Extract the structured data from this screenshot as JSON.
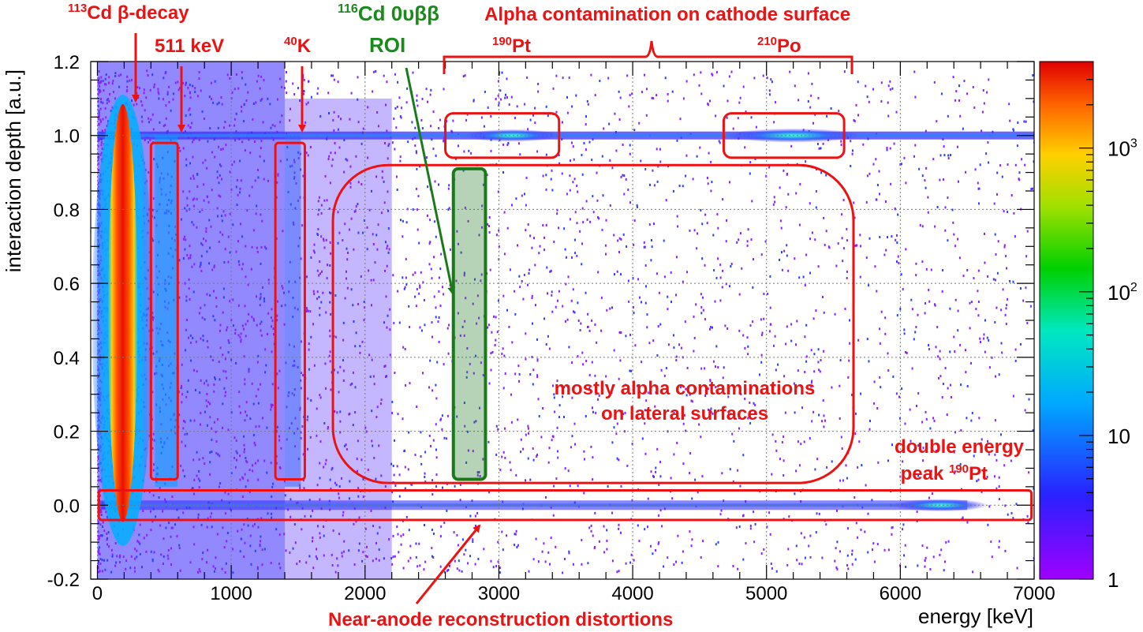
{
  "chart_data": {
    "type": "heatmap",
    "xlabel": "energy [keV]",
    "ylabel": "interaction depth [a.u.]",
    "xlim": [
      -50,
      7000
    ],
    "ylim": [
      -0.2,
      1.2
    ],
    "x_ticks": [
      0,
      1000,
      2000,
      3000,
      4000,
      5000,
      6000,
      7000
    ],
    "y_ticks": [
      -0.2,
      0.0,
      0.2,
      0.4,
      0.6,
      0.8,
      1.0,
      1.2
    ],
    "y_tick_labels": [
      "-0.2",
      "0.0",
      "0.2",
      "0.4",
      "0.6",
      "0.8",
      "1.0",
      "1.2"
    ],
    "grid": true,
    "colorbar": {
      "scale": "log",
      "range": [
        1,
        4000
      ],
      "ticks": [
        {
          "value": 1,
          "base": "1",
          "exp": ""
        },
        {
          "value": 10,
          "base": "10",
          "exp": ""
        },
        {
          "value": 100,
          "base": "10",
          "exp": "2"
        },
        {
          "value": 1000,
          "base": "10",
          "exp": "3"
        }
      ]
    },
    "features": [
      {
        "name": "113Cd beta-decay band",
        "x_range": [
          100,
          300
        ],
        "y_range": [
          -0.05,
          1.08
        ]
      },
      {
        "name": "511 keV line",
        "x": 511
      },
      {
        "name": "40K line",
        "x": 1461
      },
      {
        "name": "cathode surface line",
        "y": 1.0,
        "x_range": [
          0,
          7000
        ]
      },
      {
        "name": "near-anode line",
        "y": 0.0,
        "x_range": [
          0,
          6500
        ]
      },
      {
        "name": "190Pt peak",
        "x": 3150,
        "y": 1.0
      },
      {
        "name": "210Po peak",
        "x": 5300,
        "y": 1.0
      },
      {
        "name": "double energy peak 190Pt",
        "x": 6300,
        "y": 0.0
      }
    ],
    "regions": [
      {
        "id": "box-511",
        "x_range": [
          400,
          600
        ],
        "y_range": [
          0.07,
          0.98
        ]
      },
      {
        "id": "box-40k",
        "x_range": [
          1330,
          1550
        ],
        "y_range": [
          0.07,
          0.98
        ]
      },
      {
        "id": "box-pt",
        "x_range": [
          2600,
          3450
        ],
        "y_range": [
          0.94,
          1.06
        ]
      },
      {
        "id": "box-po",
        "x_range": [
          4680,
          5580
        ],
        "y_range": [
          0.94,
          1.06
        ]
      },
      {
        "id": "box-lateral",
        "x_range": [
          1760,
          5650
        ],
        "y_range": [
          0.06,
          0.92
        ]
      },
      {
        "id": "box-roi",
        "x_range": [
          2660,
          2900
        ],
        "y_range": [
          0.07,
          0.91
        ]
      },
      {
        "id": "box-anode",
        "x_range": [
          10,
          6980
        ],
        "y_range": [
          -0.04,
          0.04
        ]
      }
    ],
    "annotations": {
      "cd113": {
        "sup": "113",
        "text": "Cd β-decay"
      },
      "kev511": {
        "text": "511 keV"
      },
      "k40": {
        "sup": "40",
        "text": "K"
      },
      "roi_title": {
        "sup": "116",
        "text": "Cd 0υββ"
      },
      "roi": {
        "text": "ROI"
      },
      "alpha_cathode": {
        "text": "Alpha contamination on cathode surface"
      },
      "pt190": {
        "sup": "190",
        "text": "Pt"
      },
      "po210": {
        "sup": "210",
        "text": "Po"
      },
      "lateral_1": {
        "text": "mostly alpha contaminations"
      },
      "lateral_2": {
        "text": "on lateral surfaces"
      },
      "double_1": {
        "text": "double energy"
      },
      "double_2": {
        "text": "peak ",
        "sup": "190",
        "tail": "Pt"
      },
      "near_anode": {
        "text": "Near-anode reconstruction distortions"
      }
    },
    "colors": {
      "annotation_red": "#ee1111",
      "roi_green": "#1a7a1a",
      "roi_fill": "#2e7d32"
    }
  }
}
